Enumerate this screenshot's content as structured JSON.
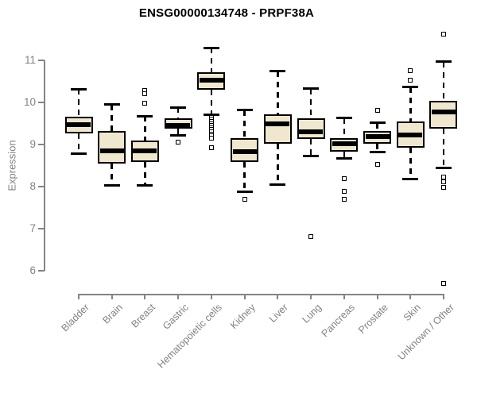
{
  "title": "ENSG00000134748 - PRPF38A",
  "y_axis": {
    "label": "Expression",
    "ticks": [
      11,
      10,
      9,
      8,
      7,
      6
    ]
  },
  "colors": {
    "box_fill": "#EFE8CF",
    "box_border": "#000000",
    "median": "#000000",
    "whisker": "#000000",
    "outlier_fill": "#FFFFFF",
    "axis": "#848484",
    "tick_label_text": "#828282",
    "title_text": "#000000",
    "background": "#FFFFFF"
  },
  "chart_data": {
    "type": "boxplot",
    "title": "ENSG00000134748 - PRPF38A",
    "xlabel": "",
    "ylabel": "Expression",
    "ylim": [
      6,
      11
    ],
    "grid": false,
    "legend": false,
    "categories": [
      "Bladder",
      "Brain",
      "Breast",
      "Gastric",
      "Hematopoietic cells",
      "Kidney",
      "Liver",
      "Lung",
      "Pancreas",
      "Prostate",
      "Skin",
      "Unknown / Other"
    ],
    "boxes": [
      {
        "label": "Bladder",
        "whisker_low": 8.78,
        "q1": 9.26,
        "median": 9.48,
        "q3": 9.66,
        "whisker_high": 10.32,
        "outliers": []
      },
      {
        "label": "Brain",
        "whisker_low": 8.03,
        "q1": 8.54,
        "median": 8.85,
        "q3": 9.33,
        "whisker_high": 9.95,
        "outliers": []
      },
      {
        "label": "Breast",
        "whisker_low": 8.02,
        "q1": 8.58,
        "median": 8.84,
        "q3": 9.1,
        "whisker_high": 9.67,
        "outliers": [
          10.28,
          10.2,
          9.98
        ]
      },
      {
        "label": "Gastric",
        "whisker_low": 9.21,
        "q1": 9.38,
        "median": 9.45,
        "q3": 9.63,
        "whisker_high": 9.88,
        "outliers": [
          9.05
        ]
      },
      {
        "label": "Hematopoietic cells",
        "whisker_low": 9.7,
        "q1": 10.31,
        "median": 10.53,
        "q3": 10.72,
        "whisker_high": 11.3,
        "outliers": [
          9.65,
          9.6,
          9.55,
          9.5,
          9.45,
          9.4,
          9.35,
          9.3,
          9.25,
          9.2,
          9.15,
          8.92
        ]
      },
      {
        "label": "Kidney",
        "whisker_low": 7.87,
        "q1": 8.58,
        "median": 8.83,
        "q3": 9.15,
        "whisker_high": 9.82,
        "outliers": [
          7.7
        ]
      },
      {
        "label": "Liver",
        "whisker_low": 8.04,
        "q1": 9.01,
        "median": 9.5,
        "q3": 9.71,
        "whisker_high": 10.74,
        "outliers": []
      },
      {
        "label": "Lung",
        "whisker_low": 8.72,
        "q1": 9.13,
        "median": 9.31,
        "q3": 9.63,
        "whisker_high": 10.33,
        "outliers": [
          6.81
        ]
      },
      {
        "label": "Pancreas",
        "whisker_low": 8.67,
        "q1": 8.83,
        "median": 9.02,
        "q3": 9.16,
        "whisker_high": 9.63,
        "outliers": [
          8.19,
          7.89,
          7.69
        ]
      },
      {
        "label": "Prostate",
        "whisker_low": 8.82,
        "q1": 9.02,
        "median": 9.19,
        "q3": 9.32,
        "whisker_high": 9.51,
        "outliers": [
          9.81,
          8.53
        ]
      },
      {
        "label": "Skin",
        "whisker_low": 8.17,
        "q1": 8.92,
        "median": 9.23,
        "q3": 9.55,
        "whisker_high": 10.36,
        "outliers": [
          10.75,
          10.53
        ]
      },
      {
        "label": "Unknown / Other",
        "whisker_low": 8.45,
        "q1": 9.38,
        "median": 9.78,
        "q3": 10.03,
        "whisker_high": 10.97,
        "outliers": [
          11.62,
          8.22,
          8.12,
          7.99,
          5.7
        ]
      }
    ]
  }
}
